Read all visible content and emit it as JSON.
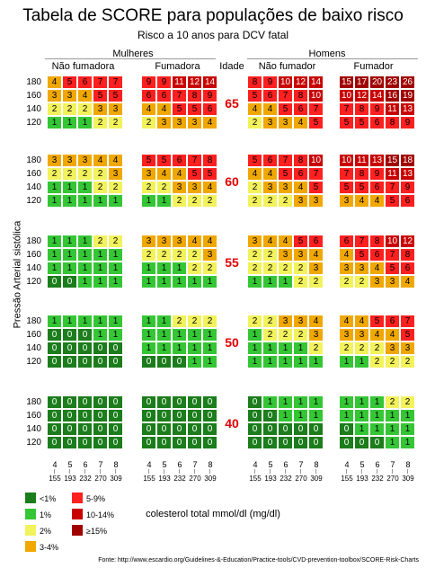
{
  "chart_data": {
    "type": "heatmap",
    "title": "Tabela de SCORE para populações de baixo risco",
    "subtitle": "Risco a 10 anos para DCV fatal",
    "ylabel": "Pressão Arterial sistólica",
    "xlabel": "colesterol total mmol/dl (mg/dl)",
    "sex_labels": [
      "Mulheres",
      "Homens"
    ],
    "group_labels": [
      "Não fumadora",
      "Fumadora",
      "Não fumador",
      "Fumador"
    ],
    "age_header": "Idade",
    "ages": [
      "65",
      "60",
      "55",
      "50",
      "40"
    ],
    "sbp_levels": [
      "180",
      "160",
      "140",
      "120"
    ],
    "cholesterol_mmol": [
      "4",
      "5",
      "6",
      "7",
      "8"
    ],
    "cholesterol_mg": [
      "155",
      "193",
      "232",
      "270",
      "309"
    ],
    "panels": {
      "65": {
        "women_nonsmoker": [
          [
            4,
            5,
            6,
            7,
            7
          ],
          [
            3,
            3,
            4,
            5,
            5
          ],
          [
            2,
            2,
            2,
            3,
            3
          ],
          [
            1,
            1,
            1,
            2,
            2
          ]
        ],
        "women_smoker": [
          [
            9,
            9,
            11,
            12,
            14
          ],
          [
            6,
            6,
            7,
            8,
            9
          ],
          [
            4,
            4,
            5,
            5,
            6
          ],
          [
            2,
            3,
            3,
            3,
            4
          ]
        ],
        "men_nonsmoker": [
          [
            8,
            9,
            10,
            12,
            14
          ],
          [
            5,
            6,
            7,
            8,
            10
          ],
          [
            4,
            4,
            5,
            6,
            7
          ],
          [
            2,
            3,
            3,
            4,
            5
          ]
        ],
        "men_smoker": [
          [
            15,
            17,
            20,
            23,
            26
          ],
          [
            10,
            12,
            14,
            16,
            19
          ],
          [
            7,
            8,
            9,
            11,
            13
          ],
          [
            5,
            5,
            6,
            8,
            9
          ]
        ]
      },
      "60": {
        "women_nonsmoker": [
          [
            3,
            3,
            3,
            4,
            4
          ],
          [
            2,
            2,
            2,
            2,
            3
          ],
          [
            1,
            1,
            1,
            2,
            2
          ],
          [
            1,
            1,
            1,
            1,
            1
          ]
        ],
        "women_smoker": [
          [
            5,
            5,
            6,
            7,
            8
          ],
          [
            3,
            4,
            4,
            5,
            5
          ],
          [
            2,
            2,
            3,
            3,
            4
          ],
          [
            1,
            1,
            2,
            2,
            2
          ]
        ],
        "men_nonsmoker": [
          [
            5,
            6,
            7,
            8,
            10
          ],
          [
            4,
            4,
            5,
            6,
            7
          ],
          [
            2,
            3,
            3,
            4,
            5
          ],
          [
            2,
            2,
            2,
            3,
            3
          ]
        ],
        "men_smoker": [
          [
            10,
            11,
            13,
            15,
            18
          ],
          [
            7,
            8,
            9,
            11,
            13
          ],
          [
            5,
            5,
            6,
            7,
            9
          ],
          [
            3,
            4,
            4,
            5,
            6
          ]
        ]
      },
      "55": {
        "women_nonsmoker": [
          [
            1,
            1,
            1,
            2,
            2
          ],
          [
            1,
            1,
            1,
            1,
            1
          ],
          [
            1,
            1,
            1,
            1,
            1
          ],
          [
            0,
            0,
            1,
            1,
            1
          ]
        ],
        "women_smoker": [
          [
            3,
            3,
            3,
            4,
            4
          ],
          [
            2,
            2,
            2,
            2,
            3
          ],
          [
            1,
            1,
            1,
            2,
            2
          ],
          [
            1,
            1,
            1,
            1,
            1
          ]
        ],
        "men_nonsmoker": [
          [
            3,
            4,
            4,
            5,
            6
          ],
          [
            2,
            2,
            3,
            3,
            4
          ],
          [
            2,
            2,
            2,
            2,
            3
          ],
          [
            1,
            1,
            1,
            2,
            2
          ]
        ],
        "men_smoker": [
          [
            6,
            7,
            8,
            10,
            12
          ],
          [
            4,
            5,
            6,
            7,
            8
          ],
          [
            3,
            3,
            4,
            5,
            6
          ],
          [
            2,
            2,
            3,
            3,
            4
          ]
        ]
      },
      "50": {
        "women_nonsmoker": [
          [
            1,
            1,
            1,
            1,
            1
          ],
          [
            0,
            0,
            0,
            1,
            1
          ],
          [
            0,
            0,
            0,
            0,
            0
          ],
          [
            0,
            0,
            0,
            0,
            0
          ]
        ],
        "women_smoker": [
          [
            1,
            1,
            2,
            2,
            2
          ],
          [
            1,
            1,
            1,
            1,
            1
          ],
          [
            1,
            1,
            1,
            1,
            1
          ],
          [
            0,
            0,
            0,
            1,
            1
          ]
        ],
        "men_nonsmoker": [
          [
            2,
            2,
            3,
            3,
            4
          ],
          [
            1,
            2,
            2,
            2,
            3
          ],
          [
            1,
            1,
            1,
            1,
            2
          ],
          [
            1,
            1,
            1,
            1,
            1
          ]
        ],
        "men_smoker": [
          [
            4,
            4,
            5,
            6,
            7
          ],
          [
            3,
            3,
            4,
            4,
            5
          ],
          [
            2,
            2,
            2,
            3,
            3
          ],
          [
            1,
            1,
            2,
            2,
            2
          ]
        ]
      },
      "40": {
        "women_nonsmoker": [
          [
            0,
            0,
            0,
            0,
            0
          ],
          [
            0,
            0,
            0,
            0,
            0
          ],
          [
            0,
            0,
            0,
            0,
            0
          ],
          [
            0,
            0,
            0,
            0,
            0
          ]
        ],
        "women_smoker": [
          [
            0,
            0,
            0,
            0,
            0
          ],
          [
            0,
            0,
            0,
            0,
            0
          ],
          [
            0,
            0,
            0,
            0,
            0
          ],
          [
            0,
            0,
            0,
            0,
            0
          ]
        ],
        "men_nonsmoker": [
          [
            0,
            1,
            1,
            1,
            1
          ],
          [
            0,
            0,
            1,
            1,
            1
          ],
          [
            0,
            0,
            0,
            0,
            0
          ],
          [
            0,
            0,
            0,
            0,
            0
          ]
        ],
        "men_smoker": [
          [
            1,
            1,
            1,
            2,
            2
          ],
          [
            1,
            1,
            1,
            1,
            1
          ],
          [
            0,
            1,
            1,
            1,
            1
          ],
          [
            0,
            0,
            0,
            1,
            1
          ]
        ]
      }
    },
    "legend": [
      {
        "label": "<1%",
        "color": "#1b7d1b"
      },
      {
        "label": "1%",
        "color": "#35c635"
      },
      {
        "label": "2%",
        "color": "#f2f25c"
      },
      {
        "label": "3-4%",
        "color": "#f0a800"
      },
      {
        "label": "5-9%",
        "color": "#ff2020"
      },
      {
        "label": "10-14%",
        "color": "#c80000"
      },
      {
        "label": "≥15%",
        "color": "#a00000"
      }
    ]
  },
  "source_text": "Fonte: http://www.escardio.org/Guidelines-&-Education/Practice-tools/CVD-prevention-toolbox/SCORE-Risk-Charts"
}
